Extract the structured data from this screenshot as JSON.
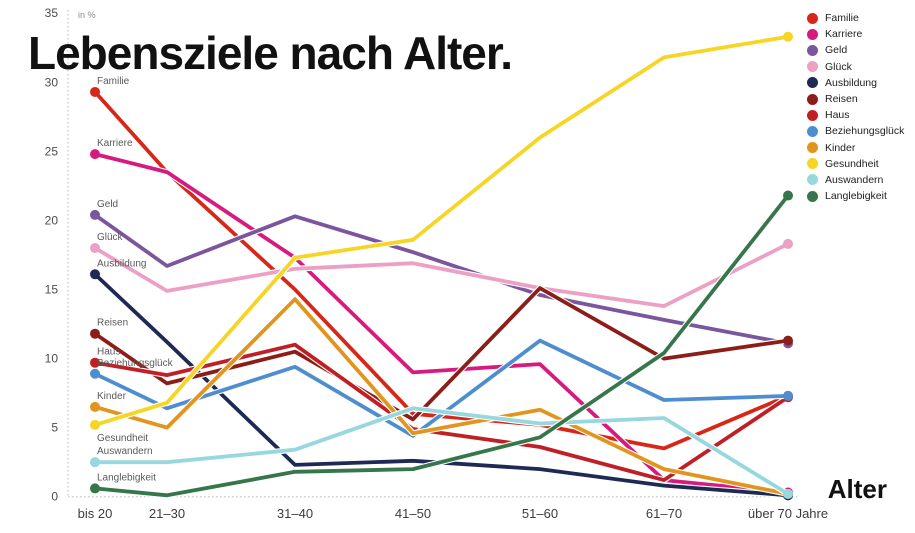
{
  "chart_data": {
    "type": "line",
    "title": "Lebensziele nach Alter.",
    "unit_label": "in %",
    "xlabel": "Alter",
    "ylim": [
      0,
      35
    ],
    "yticks": [
      0,
      5,
      10,
      15,
      20,
      25,
      30,
      35
    ],
    "grid": false,
    "legend_position": "top-right",
    "categories": [
      "bis 20",
      "21–30",
      "31–40",
      "41–50",
      "51–60",
      "61–70",
      "über 70 Jahre"
    ],
    "series": [
      {
        "name": "Familie",
        "color": "#d62718",
        "values": [
          29.3,
          23.5,
          15.0,
          6.0,
          5.2,
          3.5,
          7.3
        ]
      },
      {
        "name": "Karriere",
        "color": "#d61a7f",
        "values": [
          24.8,
          23.5,
          17.3,
          9.0,
          9.6,
          1.2,
          0.3
        ]
      },
      {
        "name": "Geld",
        "color": "#7b569d",
        "values": [
          20.4,
          16.7,
          20.3,
          17.7,
          14.6,
          12.8,
          11.1
        ]
      },
      {
        "name": "Glück",
        "color": "#eba0c4",
        "values": [
          18.0,
          14.9,
          16.5,
          16.9,
          15.1,
          13.8,
          18.3
        ]
      },
      {
        "name": "Ausbildung",
        "color": "#1e2a55",
        "values": [
          16.1,
          11.2,
          2.3,
          2.6,
          2.0,
          0.8,
          0.1
        ]
      },
      {
        "name": "Reisen",
        "color": "#8c1d18",
        "values": [
          11.8,
          8.2,
          10.5,
          5.6,
          15.1,
          10.0,
          11.3
        ]
      },
      {
        "name": "Haus",
        "color": "#bf2026",
        "values": [
          9.7,
          8.8,
          11.0,
          4.9,
          3.6,
          1.2,
          7.2
        ]
      },
      {
        "name": "Beziehungsglück",
        "color": "#4e8ece",
        "values": [
          8.9,
          6.4,
          9.4,
          4.4,
          11.3,
          7.0,
          7.3
        ]
      },
      {
        "name": "Kinder",
        "color": "#e2951d",
        "values": [
          6.5,
          5.0,
          14.3,
          4.6,
          6.3,
          2.0,
          0.2
        ]
      },
      {
        "name": "Gesundheit",
        "color": "#f7d525",
        "values": [
          5.2,
          6.8,
          17.3,
          18.6,
          26.0,
          31.8,
          33.3
        ]
      },
      {
        "name": "Auswandern",
        "color": "#97d7de",
        "values": [
          2.5,
          2.5,
          3.4,
          6.4,
          5.3,
          5.7,
          0.2
        ]
      },
      {
        "name": "Langlebigkeit",
        "color": "#37764a",
        "values": [
          0.6,
          0.1,
          1.8,
          2.0,
          4.3,
          10.4,
          21.8
        ]
      }
    ]
  }
}
